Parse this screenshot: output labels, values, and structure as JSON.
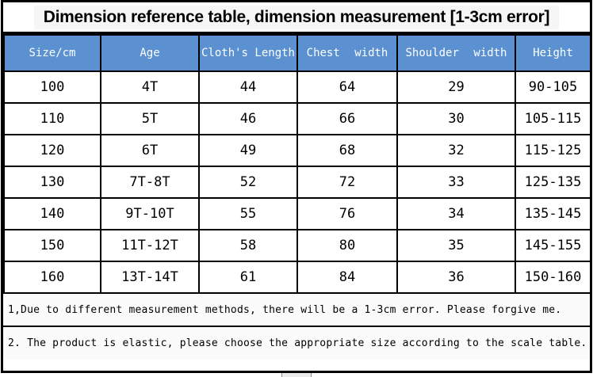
{
  "chart_data": {
    "type": "table",
    "title": "Dimension reference table, dimension measurement [1-3cm error]",
    "columns": [
      "Size/cm",
      "Age",
      "Cloth's Length",
      "Chest width",
      "Shoulder width",
      "Height"
    ],
    "rows": [
      [
        "100",
        "4T",
        "44",
        "64",
        "29",
        "90-105"
      ],
      [
        "110",
        "5T",
        "46",
        "66",
        "30",
        "105-115"
      ],
      [
        "120",
        "6T",
        "49",
        "68",
        "32",
        "115-125"
      ],
      [
        "130",
        "7T-8T",
        "52",
        "72",
        "33",
        "125-135"
      ],
      [
        "140",
        "9T-10T",
        "55",
        "76",
        "34",
        "135-145"
      ],
      [
        "150",
        "11T-12T",
        "58",
        "80",
        "35",
        "145-155"
      ],
      [
        "160",
        "13T-14T",
        "61",
        "84",
        "36",
        "150-160"
      ]
    ],
    "notes": [
      "1,Due to different measurement methods, there will be a 1-3cm error. Please forgive me.",
      "2. The product is elastic, please choose the appropriate size according to the scale table."
    ]
  },
  "colors": {
    "header_bg": "#5b90d1",
    "header_text": "#ffffff",
    "border": "#000000",
    "body_bg": "#ffffff",
    "body_text": "#000000",
    "note_bg": "#fbfbfb"
  }
}
